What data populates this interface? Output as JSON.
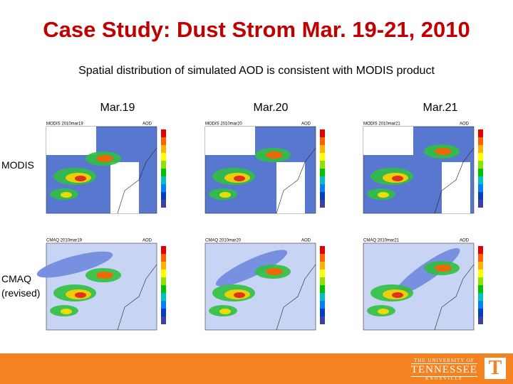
{
  "title": "Case Study: Dust Strom Mar. 19-21, 2010",
  "subtitle": "Spatial distribution of simulated AOD is consistent with MODIS product",
  "columns": [
    "Mar.19",
    "Mar.20",
    "Mar.21"
  ],
  "rows": [
    {
      "label": "MODIS"
    },
    {
      "label": "CMAQ",
      "sublabel": "(revised)"
    }
  ],
  "panels": [
    [
      {
        "title": "MODIS 2010mar19",
        "variable": "AOD"
      },
      {
        "title": "MODIS 2010mar20",
        "variable": "AOD"
      },
      {
        "title": "MODIS 2010mar21",
        "variable": "AOD"
      }
    ],
    [
      {
        "title": "CMAQ 2010mar19",
        "variable": "AOD"
      },
      {
        "title": "CMAQ 2010mar20",
        "variable": "AOD"
      },
      {
        "title": "CMAQ 2010mar21",
        "variable": "AOD"
      }
    ]
  ],
  "footer": {
    "line1": "THE UNIVERSITY OF",
    "line2": "TENNESSEE",
    "line3": "KNOXVILLE",
    "logo": "T"
  }
}
